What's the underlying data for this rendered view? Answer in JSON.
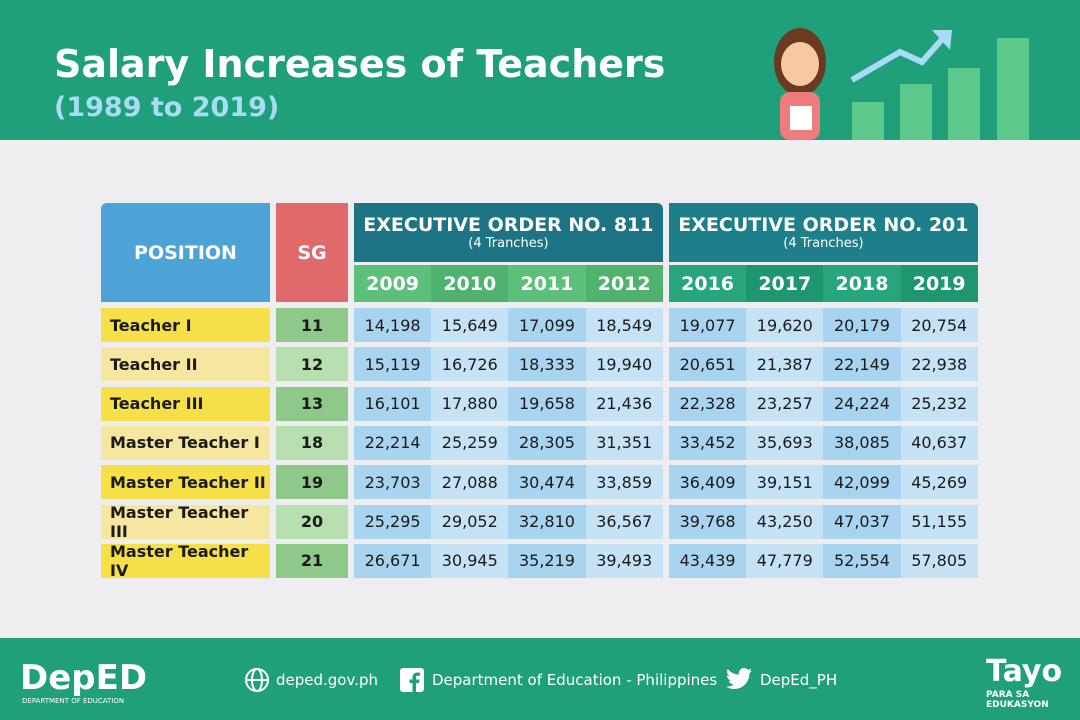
{
  "header": {
    "title": "Salary Increases of Teachers",
    "subtitle": "(1989 to 2019)"
  },
  "table": {
    "position_header": "POSITION",
    "sg_header": "SG",
    "groups": [
      {
        "title": "EXECUTIVE ORDER NO. 811",
        "subtitle": "(4 Tranches)",
        "years": [
          "2009",
          "2010",
          "2011",
          "2012"
        ]
      },
      {
        "title": "EXECUTIVE ORDER NO. 201",
        "subtitle": "(4 Tranches)",
        "years": [
          "2016",
          "2017",
          "2018",
          "2019"
        ]
      }
    ],
    "rows": [
      {
        "position": "Teacher I",
        "sg": "11",
        "values": [
          "14,198",
          "15,649",
          "17,099",
          "18,549",
          "19,077",
          "19,620",
          "20,179",
          "20,754"
        ]
      },
      {
        "position": "Teacher II",
        "sg": "12",
        "values": [
          "15,119",
          "16,726",
          "18,333",
          "19,940",
          "20,651",
          "21,387",
          "22,149",
          "22,938"
        ]
      },
      {
        "position": "Teacher III",
        "sg": "13",
        "values": [
          "16,101",
          "17,880",
          "19,658",
          "21,436",
          "22,328",
          "23,257",
          "24,224",
          "25,232"
        ]
      },
      {
        "position": "Master Teacher I",
        "sg": "18",
        "values": [
          "22,214",
          "25,259",
          "28,305",
          "31,351",
          "33,452",
          "35,693",
          "38,085",
          "40,637"
        ]
      },
      {
        "position": "Master Teacher II",
        "sg": "19",
        "values": [
          "23,703",
          "27,088",
          "30,474",
          "33,859",
          "36,409",
          "39,151",
          "42,099",
          "45,269"
        ]
      },
      {
        "position": "Master Teacher III",
        "sg": "20",
        "values": [
          "25,295",
          "29,052",
          "32,810",
          "36,567",
          "39,768",
          "43,250",
          "47,037",
          "51,155"
        ]
      },
      {
        "position": "Master Teacher IV",
        "sg": "21",
        "values": [
          "26,671",
          "30,945",
          "35,219",
          "39,493",
          "43,439",
          "47,779",
          "52,554",
          "57,805"
        ]
      }
    ]
  },
  "footer": {
    "logo": "DepED",
    "logo_sub": "DEPARTMENT OF EDUCATION",
    "website": "deped.gov.ph",
    "facebook": "Department of Education - Philippines",
    "twitter": "DepEd_PH",
    "tagline": "Tayo",
    "tagline_sub": "PARA SA EDUKASYON"
  }
}
